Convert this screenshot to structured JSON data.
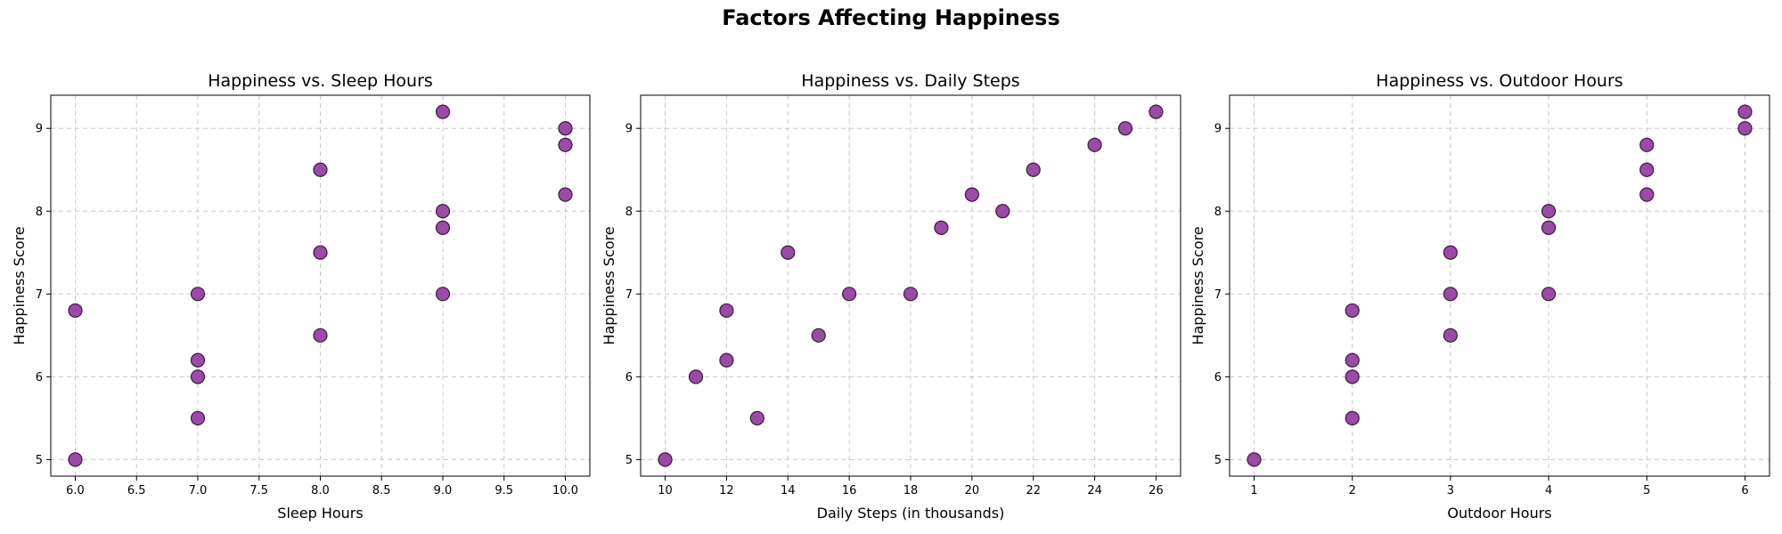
{
  "figure_title": "Factors Affecting Happiness",
  "colors": {
    "marker_fill": "#9c4aa8",
    "marker_edge": "#3a1a40",
    "grid": "#c8c8c8"
  },
  "chart_data": [
    {
      "type": "scatter",
      "title": "Happiness vs. Sleep Hours",
      "xlabel": "Sleep Hours",
      "ylabel": "Happiness Score",
      "xlim": [
        5.8,
        10.2
      ],
      "ylim": [
        4.8,
        9.4
      ],
      "xticks": [
        6.0,
        6.5,
        7.0,
        7.5,
        8.0,
        8.5,
        9.0,
        9.5,
        10.0
      ],
      "xtick_labels": [
        "6.0",
        "6.5",
        "7.0",
        "7.5",
        "8.0",
        "8.5",
        "9.0",
        "9.5",
        "10.0"
      ],
      "yticks": [
        5,
        6,
        7,
        8,
        9
      ],
      "ytick_labels": [
        "5",
        "6",
        "7",
        "8",
        "9"
      ],
      "grid": true,
      "points": [
        {
          "x": 6,
          "y": 6.8
        },
        {
          "x": 6,
          "y": 5.0
        },
        {
          "x": 7,
          "y": 7.0
        },
        {
          "x": 7,
          "y": 6.2
        },
        {
          "x": 7,
          "y": 6.0
        },
        {
          "x": 7,
          "y": 5.5
        },
        {
          "x": 8,
          "y": 8.5
        },
        {
          "x": 8,
          "y": 7.5
        },
        {
          "x": 8,
          "y": 6.5
        },
        {
          "x": 9,
          "y": 9.2
        },
        {
          "x": 9,
          "y": 8.0
        },
        {
          "x": 9,
          "y": 7.8
        },
        {
          "x": 9,
          "y": 7.0
        },
        {
          "x": 10,
          "y": 9.0
        },
        {
          "x": 10,
          "y": 8.8
        },
        {
          "x": 10,
          "y": 8.2
        }
      ]
    },
    {
      "type": "scatter",
      "title": "Happiness vs. Daily Steps",
      "xlabel": "Daily Steps (in thousands)",
      "ylabel": "Happiness Score",
      "xlim": [
        9.2,
        26.8
      ],
      "ylim": [
        4.8,
        9.4
      ],
      "xticks": [
        10,
        12,
        14,
        16,
        18,
        20,
        22,
        24,
        26
      ],
      "xtick_labels": [
        "10",
        "12",
        "14",
        "16",
        "18",
        "20",
        "22",
        "24",
        "26"
      ],
      "yticks": [
        5,
        6,
        7,
        8,
        9
      ],
      "ytick_labels": [
        "5",
        "6",
        "7",
        "8",
        "9"
      ],
      "grid": true,
      "points": [
        {
          "x": 10,
          "y": 5.0
        },
        {
          "x": 11,
          "y": 6.0
        },
        {
          "x": 12,
          "y": 6.8
        },
        {
          "x": 12,
          "y": 6.2
        },
        {
          "x": 13,
          "y": 5.5
        },
        {
          "x": 14,
          "y": 7.5
        },
        {
          "x": 15,
          "y": 6.5
        },
        {
          "x": 16,
          "y": 7.0
        },
        {
          "x": 18,
          "y": 7.0
        },
        {
          "x": 19,
          "y": 7.8
        },
        {
          "x": 20,
          "y": 8.2
        },
        {
          "x": 21,
          "y": 8.0
        },
        {
          "x": 22,
          "y": 8.5
        },
        {
          "x": 24,
          "y": 8.8
        },
        {
          "x": 25,
          "y": 9.0
        },
        {
          "x": 26,
          "y": 9.2
        }
      ]
    },
    {
      "type": "scatter",
      "title": "Happiness vs. Outdoor Hours",
      "xlabel": "Outdoor Hours",
      "ylabel": "Happiness Score",
      "xlim": [
        0.75,
        6.25
      ],
      "ylim": [
        4.8,
        9.4
      ],
      "xticks": [
        1,
        2,
        3,
        4,
        5,
        6
      ],
      "xtick_labels": [
        "1",
        "2",
        "3",
        "4",
        "5",
        "6"
      ],
      "yticks": [
        5,
        6,
        7,
        8,
        9
      ],
      "ytick_labels": [
        "5",
        "6",
        "7",
        "8",
        "9"
      ],
      "grid": true,
      "points": [
        {
          "x": 1,
          "y": 5.0
        },
        {
          "x": 2,
          "y": 6.8
        },
        {
          "x": 2,
          "y": 6.2
        },
        {
          "x": 2,
          "y": 6.0
        },
        {
          "x": 2,
          "y": 5.5
        },
        {
          "x": 3,
          "y": 7.5
        },
        {
          "x": 3,
          "y": 7.0
        },
        {
          "x": 3,
          "y": 6.5
        },
        {
          "x": 4,
          "y": 8.0
        },
        {
          "x": 4,
          "y": 7.8
        },
        {
          "x": 4,
          "y": 7.0
        },
        {
          "x": 5,
          "y": 8.8
        },
        {
          "x": 5,
          "y": 8.5
        },
        {
          "x": 5,
          "y": 8.2
        },
        {
          "x": 6,
          "y": 9.2
        },
        {
          "x": 6,
          "y": 9.0
        }
      ]
    }
  ]
}
